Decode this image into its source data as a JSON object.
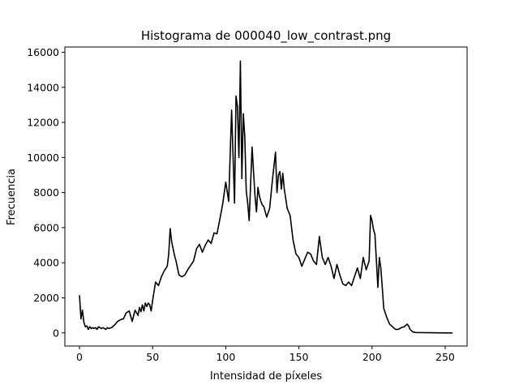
{
  "chart_data": {
    "type": "line",
    "title": "Histograma de 000040_low_contrast.png",
    "xlabel": "Intensidad de píxeles",
    "ylabel": "Frecuencia",
    "xlim": [
      -10,
      265
    ],
    "ylim": [
      -750,
      16300
    ],
    "x_ticks": [
      0,
      50,
      100,
      150,
      200,
      250
    ],
    "y_ticks": [
      0,
      2000,
      4000,
      6000,
      8000,
      10000,
      12000,
      14000,
      16000
    ],
    "grid": false,
    "color": "#000000",
    "series": [
      {
        "x": [
          0,
          1,
          2,
          3,
          4,
          5,
          6,
          7,
          8,
          9,
          10,
          11,
          12,
          13,
          14,
          15,
          16,
          17,
          18,
          19,
          20,
          22,
          24,
          26,
          28,
          30,
          32,
          34,
          36,
          38,
          40,
          41,
          42,
          43,
          44,
          45,
          46,
          47,
          48,
          49,
          50,
          52,
          54,
          56,
          58,
          60,
          61,
          62,
          63,
          64,
          65,
          66,
          68,
          70,
          72,
          74,
          76,
          78,
          80,
          82,
          84,
          86,
          88,
          90,
          92,
          94,
          96,
          98,
          100,
          102,
          104,
          106,
          107,
          108,
          109,
          110,
          111,
          112,
          113,
          114,
          115,
          116,
          118,
          120,
          121,
          122,
          123,
          124,
          125,
          126,
          128,
          130,
          132,
          134,
          135,
          136,
          137,
          138,
          139,
          140,
          142,
          144,
          146,
          148,
          150,
          152,
          154,
          156,
          158,
          160,
          162,
          164,
          166,
          168,
          170,
          172,
          174,
          176,
          178,
          180,
          182,
          184,
          186,
          188,
          190,
          192,
          194,
          196,
          198,
          199,
          200,
          201,
          202,
          204,
          205,
          206,
          207,
          208,
          210,
          212,
          214,
          216,
          218,
          220,
          222,
          224,
          225,
          226,
          228,
          230,
          240,
          250,
          255
        ],
        "y": [
          2150,
          800,
          1300,
          600,
          350,
          400,
          200,
          350,
          250,
          300,
          250,
          300,
          200,
          350,
          300,
          250,
          300,
          250,
          200,
          300,
          250,
          300,
          450,
          650,
          750,
          800,
          1150,
          1250,
          650,
          1300,
          1000,
          1450,
          1200,
          1600,
          1250,
          1700,
          1500,
          1700,
          1600,
          1250,
          1850,
          2900,
          2700,
          3200,
          3550,
          3800,
          4500,
          5950,
          5200,
          4800,
          4400,
          4100,
          3300,
          3200,
          3300,
          3600,
          3850,
          4100,
          4800,
          5050,
          4600,
          5000,
          5300,
          5100,
          5700,
          5650,
          6500,
          7400,
          8600,
          7500,
          12700,
          7400,
          13500,
          12900,
          10000,
          15500,
          8800,
          12500,
          11200,
          8100,
          7400,
          6400,
          10600,
          7800,
          6900,
          8300,
          7800,
          7500,
          7300,
          7200,
          6600,
          7100,
          8800,
          10300,
          8000,
          9000,
          9200,
          8200,
          9100,
          8200,
          7100,
          6700,
          5300,
          4500,
          4300,
          3800,
          4200,
          4600,
          4500,
          4100,
          3900,
          5500,
          4300,
          3900,
          4300,
          3800,
          3100,
          3900,
          3300,
          2800,
          2700,
          2900,
          2700,
          3200,
          3700,
          3100,
          4300,
          3600,
          4100,
          6700,
          6400,
          5900,
          5600,
          2600,
          4300,
          3700,
          2600,
          1400,
          900,
          500,
          350,
          200,
          200,
          300,
          350,
          500,
          400,
          200,
          50,
          20,
          10,
          0,
          0
        ]
      }
    ]
  }
}
